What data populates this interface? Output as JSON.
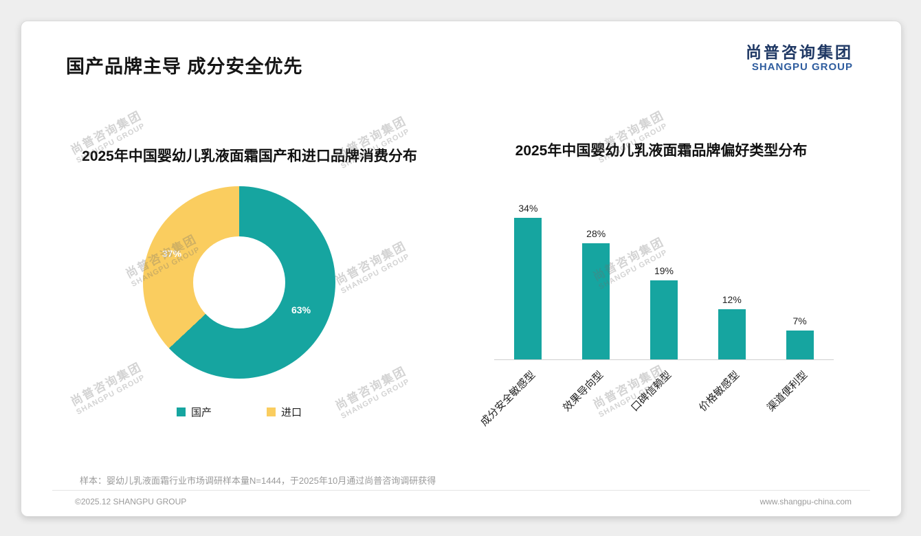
{
  "slide": {
    "title": "国产品牌主导 成分安全优先",
    "logo": {
      "cn": "尚普咨询集团",
      "en": "SHANGPU GROUP"
    },
    "watermark": {
      "line1": "尚普咨询集团",
      "line2": "SHANGPU GROUP"
    },
    "footnote": "样本：婴幼儿乳液面霜行业市场调研样本量N=1444，于2025年10月通过尚普咨询调研获得",
    "footer_left": "©2025.12 SHANGPU GROUP",
    "footer_right": "www.shangpu-china.com"
  },
  "colors": {
    "teal": "#16A5A0",
    "yellow": "#FACD5F",
    "logo_navy": "#1F3864",
    "logo_blue": "#2E5C9E"
  },
  "chart_data": [
    {
      "type": "pie",
      "donut": true,
      "title": "2025年中国婴幼儿乳液面霜国产和进口品牌消费分布",
      "labels": [
        "国产",
        "进口"
      ],
      "values": [
        63,
        37
      ],
      "value_labels": [
        "63%",
        "37%"
      ],
      "colors": [
        "#16A5A0",
        "#FACD5F"
      ],
      "legend_position": "bottom",
      "start_angle_deg": 0,
      "direction": "clockwise"
    },
    {
      "type": "bar",
      "title": "2025年中国婴幼儿乳液面霜品牌偏好类型分布",
      "categories": [
        "成分安全敏感型",
        "效果导向型",
        "口碑信赖型",
        "价格敏感型",
        "渠道便利型"
      ],
      "values": [
        34,
        28,
        19,
        12,
        7
      ],
      "value_labels": [
        "34%",
        "28%",
        "19%",
        "12%",
        "7%"
      ],
      "bar_color": "#16A5A0",
      "xlabel": "",
      "ylabel": "",
      "ylim": [
        0,
        40
      ],
      "grid": false,
      "category_label_rotation_deg": -45
    }
  ]
}
